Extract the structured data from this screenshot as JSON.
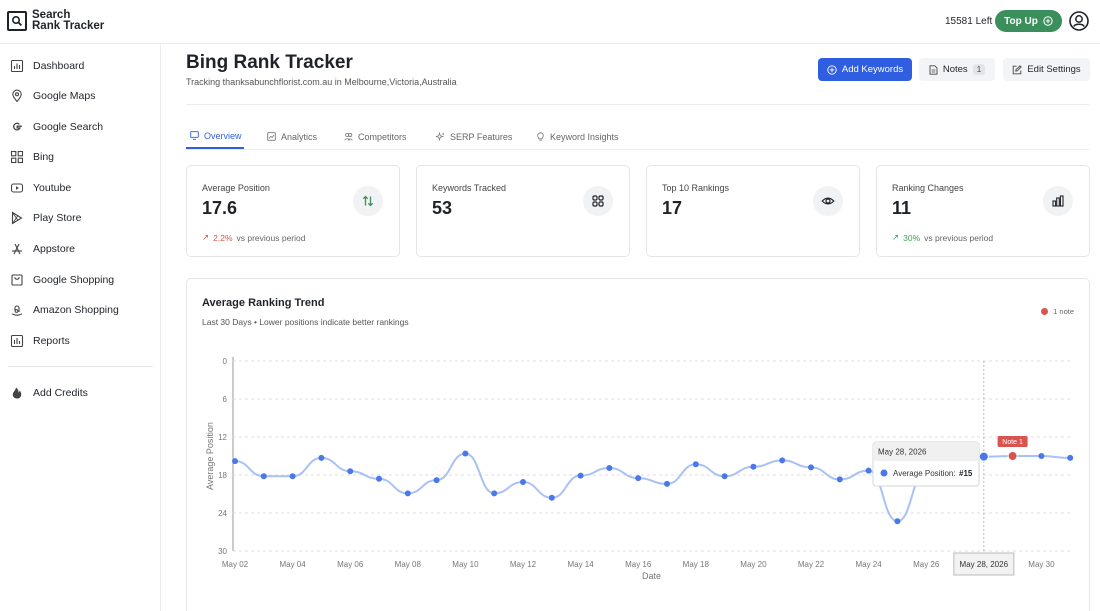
{
  "brand": {
    "line1": "Search",
    "line2": "Rank Tracker"
  },
  "topbar": {
    "credits": "15581 Left",
    "topup_label": "Top Up"
  },
  "sidebar": {
    "items": [
      {
        "label": "Dashboard",
        "icon": "dashboard-icon"
      },
      {
        "label": "Google Maps",
        "icon": "map-pin-icon"
      },
      {
        "label": "Google Search",
        "icon": "google-icon"
      },
      {
        "label": "Bing",
        "icon": "bing-icon"
      },
      {
        "label": "Youtube",
        "icon": "youtube-icon"
      },
      {
        "label": "Play Store",
        "icon": "play-store-icon"
      },
      {
        "label": "Appstore",
        "icon": "appstore-icon"
      },
      {
        "label": "Google Shopping",
        "icon": "shopping-bag-icon"
      },
      {
        "label": "Amazon Shopping",
        "icon": "amazon-icon"
      },
      {
        "label": "Reports",
        "icon": "reports-icon"
      }
    ],
    "extra": {
      "label": "Add Credits",
      "icon": "flame-icon"
    }
  },
  "header": {
    "title": "Bing Rank Tracker",
    "subtitle": "Tracking thanksabunchflorist.com.au in Melbourne,Victoria,Australia",
    "add_keywords": "Add Keywords",
    "notes": "Notes",
    "notes_count": "1",
    "edit_settings": "Edit Settings"
  },
  "tabs": [
    {
      "label": "Overview",
      "active": true
    },
    {
      "label": "Analytics",
      "active": false
    },
    {
      "label": "Competitors",
      "active": false
    },
    {
      "label": "SERP Features",
      "active": false
    },
    {
      "label": "Keyword Insights",
      "active": false
    }
  ],
  "cards": [
    {
      "label": "Average Position",
      "value": "17.6",
      "trend": "2.2%",
      "trend_text": "vs previous period",
      "trend_dir": "bad",
      "icon": "arrows-up-down-icon"
    },
    {
      "label": "Keywords Tracked",
      "value": "53",
      "icon": "grid-icon"
    },
    {
      "label": "Top 10 Rankings",
      "value": "17",
      "icon": "eye-icon"
    },
    {
      "label": "Ranking Changes",
      "value": "11",
      "trend": "30%",
      "trend_text": "vs previous period",
      "trend_dir": "good",
      "icon": "bar-chart-icon"
    }
  ],
  "colors": {
    "accent": "#2f5fe0",
    "topup": "#3a8f5c",
    "note": "#d9534f",
    "line": "#a9c1f5",
    "point": "#4a78e8"
  },
  "chart_data": {
    "type": "line",
    "title": "Average Ranking Trend",
    "subtitle": "Last 30 Days • Lower positions indicate better rankings",
    "xlabel": "Date",
    "ylabel": "Average Position",
    "ylim": [
      0,
      30
    ],
    "y_inverted": true,
    "yticks": [
      0,
      6,
      12,
      18,
      24,
      30
    ],
    "xticks": [
      "May 02",
      "May 04",
      "May 06",
      "May 08",
      "May 10",
      "May 12",
      "May 14",
      "May 16",
      "May 18",
      "May 20",
      "May 22",
      "May 24",
      "May 26",
      "May 28, 2026",
      "May 30"
    ],
    "highlighted_xtick": "May 28, 2026",
    "x": [
      "May 02",
      "May 03",
      "May 04",
      "May 05",
      "May 06",
      "May 07",
      "May 08",
      "May 09",
      "May 10",
      "May 11",
      "May 12",
      "May 13",
      "May 14",
      "May 15",
      "May 16",
      "May 17",
      "May 18",
      "May 19",
      "May 20",
      "May 21",
      "May 22",
      "May 23",
      "May 24",
      "May 25",
      "May 26",
      "May 27",
      "May 28",
      "May 29",
      "May 30",
      "May 31"
    ],
    "series": [
      {
        "values": [
          15.8,
          18.2,
          18.2,
          15.3,
          17.4,
          18.6,
          20.9,
          18.8,
          14.6,
          20.9,
          19.1,
          21.6,
          18.1,
          16.9,
          18.5,
          19.4,
          16.3,
          18.2,
          16.7,
          15.7,
          16.8,
          18.7,
          17.3,
          25.3,
          17.5,
          15.2,
          15.1,
          15.0,
          15.0,
          15.3
        ]
      }
    ],
    "legend": {
      "label": "1 note",
      "placement": "top-right"
    },
    "annotation": {
      "x": "May 29",
      "label": "Note 1"
    },
    "tooltip": {
      "date": "May 28, 2026",
      "label": "Average Position:",
      "value": "#15"
    }
  }
}
